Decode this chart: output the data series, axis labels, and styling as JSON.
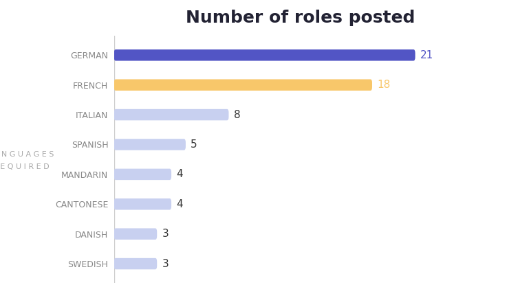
{
  "title": "Number of roles posted",
  "ylabel_line1": "L A N G U A G E S",
  "ylabel_line2": "R E Q U I R E D",
  "languages": [
    "GERMAN",
    "FRENCH",
    "ITALIAN",
    "SPANISH",
    "MANDARIN",
    "CANTONESE",
    "DANISH",
    "SWEDISH"
  ],
  "values": [
    21,
    18,
    8,
    5,
    4,
    4,
    3,
    3
  ],
  "bar_colors": [
    "#5255c5",
    "#f8c76a",
    "#c8d0f0",
    "#c8d0f0",
    "#c8d0f0",
    "#c8d0f0",
    "#c8d0f0",
    "#c8d0f0"
  ],
  "label_colors": [
    "#5255c5",
    "#f8c76a",
    "#333333",
    "#333333",
    "#333333",
    "#333333",
    "#333333",
    "#333333"
  ],
  "background_color": "#ffffff",
  "title_color": "#222233",
  "tick_color": "#888888",
  "title_fontsize": 18,
  "tick_fontsize": 9,
  "label_fontsize": 11,
  "xlim": [
    0,
    26
  ]
}
